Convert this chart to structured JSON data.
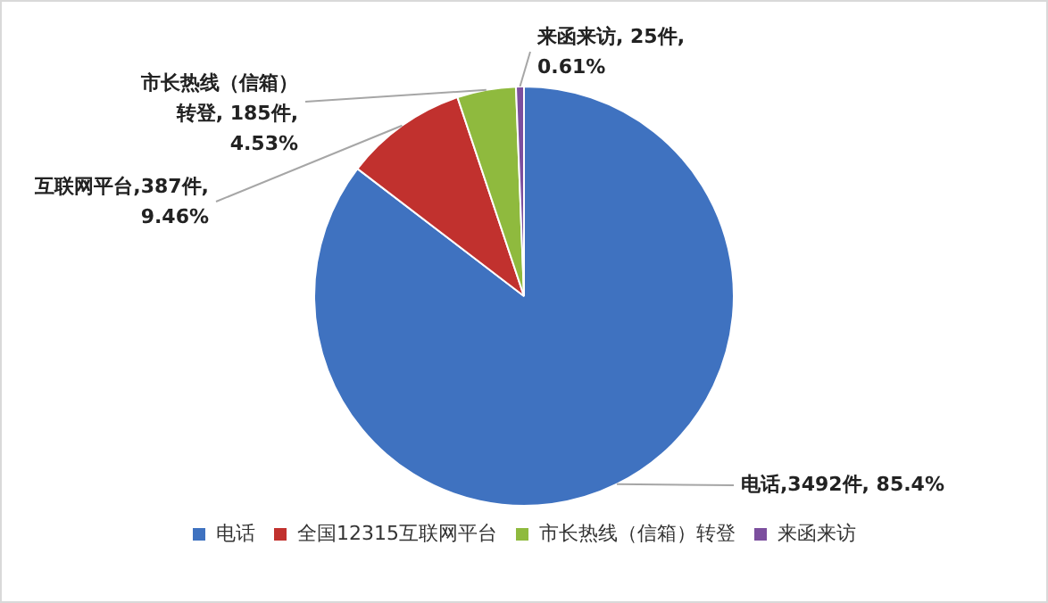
{
  "chart_data": {
    "type": "pie",
    "categories": [
      "电话",
      "全国12315互联网平台",
      "市长热线（信箱）转登",
      "来函来访"
    ],
    "values": [
      3492,
      387,
      185,
      25
    ],
    "colors": [
      "#3f72c0",
      "#c1312e",
      "#8fba3e",
      "#7c4f9e"
    ],
    "value_labels": [
      "电话,3492件, 85.4%",
      "互联网平台,387件, 9.46%",
      "市长热线（信箱）转登, 185件, 4.53%",
      "来函来访, 25件, 0.61%"
    ],
    "legend": "bottom"
  }
}
